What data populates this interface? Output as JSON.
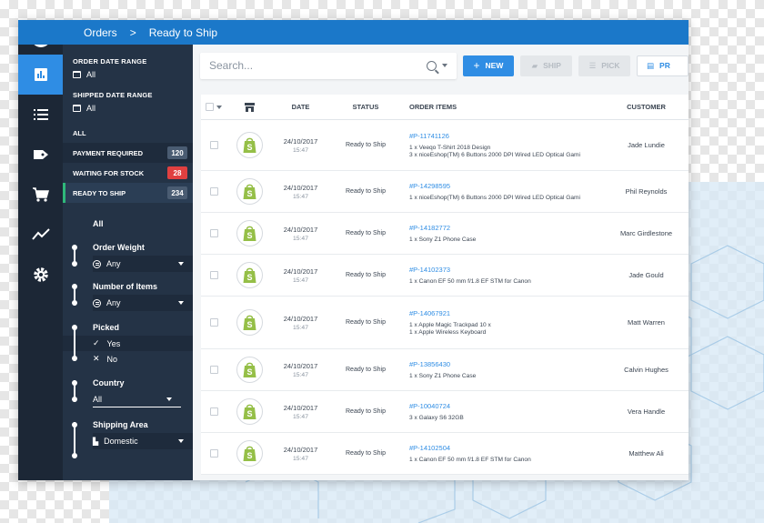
{
  "topbar": {
    "breadcrumb_root": "Orders",
    "separator": ">",
    "breadcrumb_current": "Ready to Ship"
  },
  "filters": {
    "order_date": {
      "label": "ORDER DATE RANGE",
      "value": "All"
    },
    "shipped_date": {
      "label": "SHIPPED DATE RANGE",
      "value": "All"
    },
    "statuses": [
      {
        "label": "ALL",
        "count": ""
      },
      {
        "label": "PAYMENT REQUIRED",
        "count": "120"
      },
      {
        "label": "WAITING FOR STOCK",
        "count": "28"
      },
      {
        "label": "READY TO SHIP",
        "count": "234"
      }
    ],
    "sub_all": "All",
    "order_weight": {
      "label": "Order Weight",
      "value": "Any"
    },
    "number_of_items": {
      "label": "Number of Items",
      "value": "Any"
    },
    "picked": {
      "label": "Picked",
      "yes": "Yes",
      "no": "No"
    },
    "country": {
      "label": "Country",
      "value": "All"
    },
    "shipping_area": {
      "label": "Shipping Area",
      "value": "Domestic"
    }
  },
  "toolbar": {
    "search_placeholder": "Search...",
    "new_label": "NEW",
    "ship_label": "SHIP",
    "pick_label": "PICK",
    "print_label": "PR"
  },
  "table": {
    "headers": {
      "date": "DATE",
      "status": "STATUS",
      "items": "ORDER ITEMS",
      "customer": "CUSTOMER"
    },
    "rows": [
      {
        "date": "24/10/2017",
        "time": "15:47",
        "status": "Ready to Ship",
        "id": "#P-11741126",
        "lines": [
          "1 x Veeqo T-Shirt 2018 Design",
          "3 x niceEshop(TM) 6 Buttons 2000 DPI Wired LED Optical Gami"
        ],
        "customer": "Jade Lundie"
      },
      {
        "date": "24/10/2017",
        "time": "15:47",
        "status": "Ready to Ship",
        "id": "#P-14298595",
        "lines": [
          "1 x niceEshop(TM) 6 Buttons 2000 DPI Wired LED Optical Gami"
        ],
        "customer": "Phil Reynolds"
      },
      {
        "date": "24/10/2017",
        "time": "15:47",
        "status": "Ready to Ship",
        "id": "#P-14182772",
        "lines": [
          "1 x Sony Z1 Phone Case"
        ],
        "customer": "Marc Girdlestone"
      },
      {
        "date": "24/10/2017",
        "time": "15:47",
        "status": "Ready to Ship",
        "id": "#P-14102373",
        "lines": [
          "1 x Canon EF 50 mm f/1.8 EF STM for Canon"
        ],
        "customer": "Jade Gould"
      },
      {
        "date": "24/10/2017",
        "time": "15:47",
        "status": "Ready to Ship",
        "id": "#P-14067921",
        "lines": [
          "1 x Apple Magic Trackpad 10 x",
          "1 x Apple Wireless Keyboard"
        ],
        "customer": "Matt Warren"
      },
      {
        "date": "24/10/2017",
        "time": "15:47",
        "status": "Ready to Ship",
        "id": "#P-13856430",
        "lines": [
          "1 x Sony Z1 Phone Case"
        ],
        "customer": "Calvin Hughes"
      },
      {
        "date": "24/10/2017",
        "time": "15:47",
        "status": "Ready to Ship",
        "id": "#P-10040724",
        "lines": [
          "3 x Galaxy S6 32GB"
        ],
        "customer": "Vera Handle"
      },
      {
        "date": "24/10/2017",
        "time": "15:47",
        "status": "Ready to Ship",
        "id": "#P-14102504",
        "lines": [
          "1 x Canon EF 50 mm f/1.8 EF STM for Canon"
        ],
        "customer": "Matthew Ali"
      }
    ]
  },
  "colors": {
    "accent": "#2f8de4",
    "topbar": "#1b78c9",
    "rail": "#1c2736",
    "panel": "#243346",
    "shopify": "#95bf47",
    "badge_red": "#e04040"
  }
}
